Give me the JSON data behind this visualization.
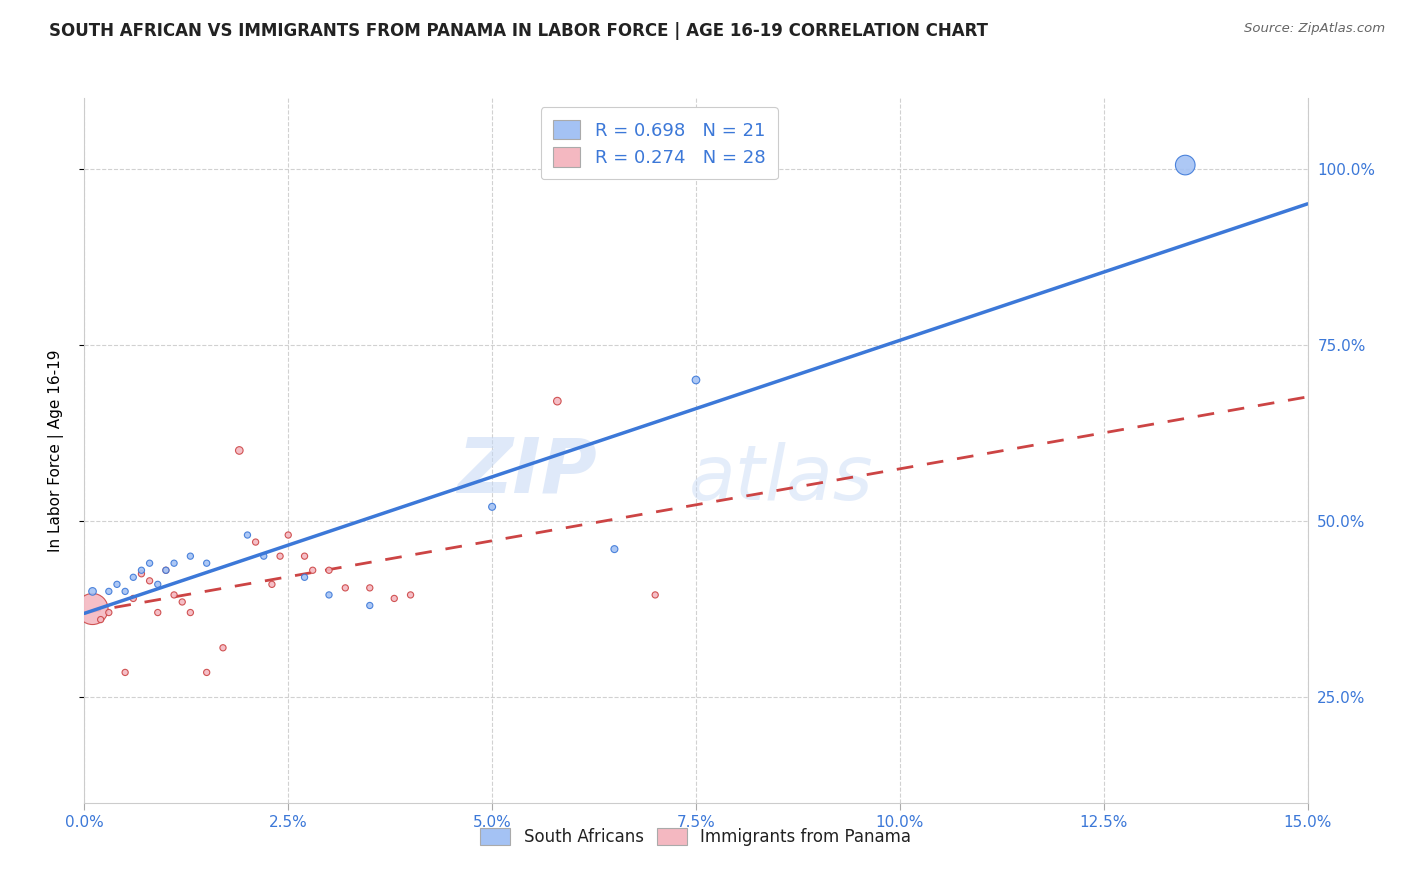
{
  "title": "SOUTH AFRICAN VS IMMIGRANTS FROM PANAMA IN LABOR FORCE | AGE 16-19 CORRELATION CHART",
  "source_text": "Source: ZipAtlas.com",
  "ylabel": "In Labor Force | Age 16-19",
  "xlim": [
    0.0,
    0.15
  ],
  "ylim": [
    0.1,
    1.1
  ],
  "xtick_labels": [
    "0.0%",
    "2.5%",
    "5.0%",
    "7.5%",
    "10.0%",
    "12.5%",
    "15.0%"
  ],
  "xtick_vals": [
    0.0,
    0.025,
    0.05,
    0.075,
    0.1,
    0.125,
    0.15
  ],
  "ytick_labels_right": [
    "25.0%",
    "50.0%",
    "75.0%",
    "100.0%"
  ],
  "ytick_vals_right": [
    0.25,
    0.5,
    0.75,
    1.0
  ],
  "blue_color": "#a4c2f4",
  "pink_color": "#f4b8c1",
  "blue_line_color": "#3c78d8",
  "pink_line_color": "#cc4444",
  "blue_R": 0.698,
  "blue_N": 21,
  "pink_R": 0.274,
  "pink_N": 28,
  "watermark_zip": "ZIP",
  "watermark_atlas": "atlas",
  "blue_points_x": [
    0.001,
    0.003,
    0.004,
    0.005,
    0.006,
    0.007,
    0.008,
    0.009,
    0.01,
    0.011,
    0.013,
    0.015,
    0.02,
    0.022,
    0.027,
    0.03,
    0.035,
    0.05,
    0.065,
    0.075,
    0.135
  ],
  "blue_points_y": [
    0.4,
    0.4,
    0.41,
    0.4,
    0.42,
    0.43,
    0.44,
    0.41,
    0.43,
    0.44,
    0.45,
    0.44,
    0.48,
    0.45,
    0.42,
    0.395,
    0.38,
    0.52,
    0.46,
    0.7,
    1.005
  ],
  "blue_sizes": [
    30,
    20,
    20,
    20,
    20,
    20,
    20,
    20,
    20,
    20,
    20,
    20,
    20,
    20,
    20,
    20,
    20,
    25,
    25,
    30,
    200
  ],
  "pink_points_x": [
    0.001,
    0.002,
    0.003,
    0.005,
    0.006,
    0.007,
    0.008,
    0.009,
    0.01,
    0.011,
    0.012,
    0.013,
    0.015,
    0.017,
    0.019,
    0.021,
    0.023,
    0.024,
    0.025,
    0.027,
    0.028,
    0.03,
    0.032,
    0.035,
    0.038,
    0.04,
    0.058,
    0.07
  ],
  "pink_points_y": [
    0.375,
    0.36,
    0.37,
    0.285,
    0.39,
    0.425,
    0.415,
    0.37,
    0.43,
    0.395,
    0.385,
    0.37,
    0.285,
    0.32,
    0.6,
    0.47,
    0.41,
    0.45,
    0.48,
    0.45,
    0.43,
    0.43,
    0.405,
    0.405,
    0.39,
    0.395,
    0.67,
    0.395
  ],
  "pink_sizes": [
    500,
    20,
    20,
    20,
    20,
    20,
    20,
    20,
    20,
    20,
    20,
    20,
    20,
    20,
    30,
    20,
    20,
    20,
    20,
    20,
    20,
    20,
    20,
    20,
    20,
    20,
    30,
    20
  ]
}
